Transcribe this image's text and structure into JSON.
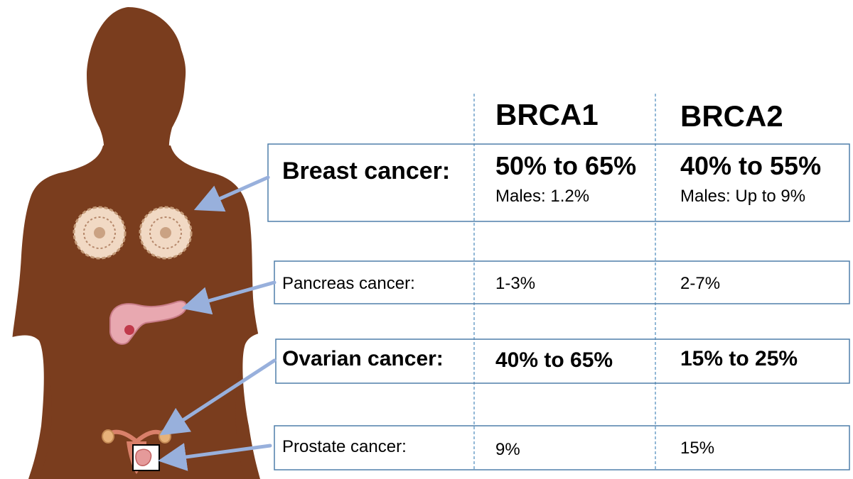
{
  "columns": {
    "brca1": "BRCA1",
    "brca2": "BRCA2"
  },
  "rows": [
    {
      "label": "Breast cancer:",
      "brca1": "50% to 65%",
      "brca1_note": "Males: 1.2%",
      "brca2": "40% to 55%",
      "brca2_note": "Males: Up to 9%"
    },
    {
      "label": "Pancreas cancer:",
      "brca1": "1-3%",
      "brca2": "2-7%"
    },
    {
      "label": "Ovarian cancer:",
      "brca1": "40% to 65%",
      "brca2": "15% to 25%"
    },
    {
      "label": "Prostate cancer:",
      "brca1": "9%",
      "brca2": "15%"
    }
  ],
  "colors": {
    "silhouette": "#7a3d1e",
    "box_border": "#4f7faa",
    "divider": "#6fa0c8",
    "arrow": "#98b0dc",
    "breast_tissue": "#f1d9c4",
    "pancreas": "#e8a8b0",
    "uterus": "#d9806a"
  }
}
